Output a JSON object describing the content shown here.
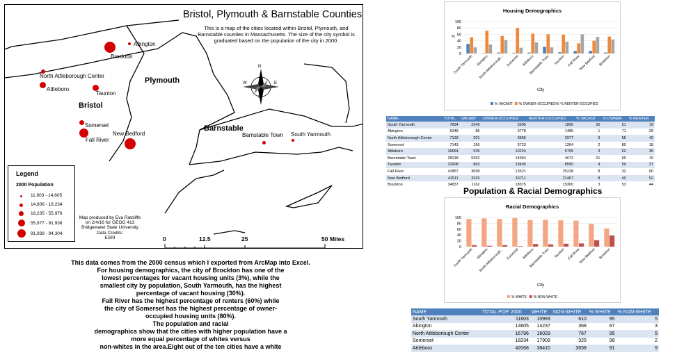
{
  "map": {
    "title": "Bristol, Plymouth & Barnstable Counties",
    "description": "This is a map of the cities located within Bristol, Plymouth, and Barnstable counties in Massachusetts. The size of the city symbol is graduated based on the population of the city in 2000.",
    "counties": [
      "Plymouth",
      "Bristol",
      "Barnstable"
    ],
    "cities": [
      "Abington",
      "Brockton",
      "North Attleborough Center",
      "Attleboro",
      "Taunton",
      "Somerset",
      "New Bedford",
      "Fall River",
      "Barnstable Town",
      "South Yarmouth"
    ],
    "compass": {
      "n": "N",
      "s": "S",
      "e": "E",
      "w": "W"
    },
    "legend": {
      "title": "Legend",
      "subtitle": "2000 Population",
      "items": [
        "11,603 - 14,605",
        "14,606 - 18,234",
        "18,235 - 55,976",
        "55,977 - 91,938",
        "91,939 - 94,304"
      ],
      "symbol_color": "#d40000"
    },
    "credit": [
      "Map produced by Eva Ratcliffe",
      "on 2/4/16 for GEOG 413",
      "Bridgewater State University",
      "Data Credits:",
      "ESRI"
    ],
    "scale": [
      "0",
      "12.5",
      "25",
      "50 Miles"
    ]
  },
  "body_text": [
    "This data comes from the 2000 census which I exported from ArcMap into Excel.",
    "For housing demographics, the city of Brockton has one of the",
    "lowest percentages for vacant housing units (3%), while the",
    "smallest city by population, South Yarmouth, has the highest",
    "percentage of vacant housing (30%).",
    "Fall River has the highest percentage of renters (60%) while",
    "the city of Somerset has the highest percentage of owner-",
    "occupied housing units (80%).",
    "The population and racial",
    "demographics show that the cities with higher population have a",
    "more equal percentage of whites versus",
    "non-whites in the area.Eight out of the ten cities have a white"
  ],
  "housing": {
    "section_title": "Population & Racial Demographics",
    "table_headers": [
      "NAME",
      "TOTAL",
      "VACANT",
      "OWNER-OCCUPIED",
      "RENTER-OCCUPIED",
      "% VACANT",
      "% OWNER",
      "% RENTER"
    ],
    "rows": [
      [
        "South Yarmouth",
        "7834",
        "2349",
        "3995",
        "1890",
        "30",
        "51",
        "19"
      ],
      [
        "Abington",
        "5348",
        "85",
        "3778",
        "1485",
        "1",
        "71",
        "28"
      ],
      [
        "North Attleborough Center",
        "7133",
        "201",
        "3955",
        "2977",
        "3",
        "55",
        "42"
      ],
      [
        "Somerset",
        "7143",
        "156",
        "5723",
        "1264",
        "2",
        "80",
        "18"
      ],
      [
        "Attleboro",
        "16654",
        "535",
        "10224",
        "5795",
        "3",
        "62",
        "35"
      ],
      [
        "Barnstable Town",
        "25018",
        "5392",
        "14954",
        "4672",
        "21",
        "60",
        "19"
      ],
      [
        "Taunton",
        "22908",
        "863",
        "13495",
        "8550",
        "4",
        "59",
        "37"
      ],
      [
        "Fall River",
        "41857",
        "3098",
        "13521",
        "25238",
        "8",
        "32",
        "60"
      ],
      [
        "New Bedford",
        "41511",
        "3333",
        "16711",
        "21467",
        "8",
        "40",
        "52"
      ],
      [
        "Brockton",
        "34837",
        "1162",
        "18375",
        "15300",
        "3",
        "53",
        "44"
      ]
    ]
  },
  "race": {
    "table_headers": [
      "NAME",
      "TOTAL POP. 2000",
      "WHITE",
      "NON-WHITE",
      "% WHITE",
      "% NON-WHITE"
    ],
    "rows": [
      [
        "South Yarmouth",
        "11603",
        "10993",
        "610",
        "95",
        "5"
      ],
      [
        "Abington",
        "14605",
        "14237",
        "368",
        "97",
        "3"
      ],
      [
        "North Attleborough Center",
        "16796",
        "16029",
        "767",
        "95",
        "5"
      ],
      [
        "Somerset",
        "18234",
        "17909",
        "325",
        "98",
        "2"
      ],
      [
        "Attleboro",
        "42068",
        "38410",
        "3658",
        "91",
        "9"
      ]
    ]
  },
  "chart_data": [
    {
      "type": "bar",
      "title": "Housing Demographics",
      "xlabel": "City",
      "ylabel": "%",
      "ylim": [
        0,
        100
      ],
      "yticks": [
        "100",
        "80",
        "60",
        "40",
        "20",
        "0"
      ],
      "categories": [
        "South Yarmouth",
        "Abington",
        "North Attleborough...",
        "Somerset",
        "Attleboro",
        "Barnstable Town",
        "Taunton",
        "Fall River",
        "New Bedford",
        "Brockton"
      ],
      "series": [
        {
          "name": "% VACANT",
          "color": "#4f81bd",
          "values": [
            30,
            1,
            3,
            2,
            3,
            21,
            4,
            8,
            8,
            3
          ]
        },
        {
          "name": "% OWNER-OCCUPIED",
          "color": "#f0883a",
          "values": [
            51,
            71,
            55,
            80,
            62,
            60,
            59,
            32,
            40,
            53
          ]
        },
        {
          "name": "% RENTER-OCCUPIED",
          "color": "#a5a5a5",
          "values": [
            19,
            28,
            42,
            18,
            35,
            19,
            37,
            60,
            52,
            44
          ]
        }
      ]
    },
    {
      "type": "bar",
      "title": "Racial Demographics",
      "xlabel": "City",
      "ylim": [
        0,
        100
      ],
      "yticks": [
        "100",
        "80",
        "60",
        "40",
        "20",
        "0"
      ],
      "categories": [
        "South Yarmouth",
        "Abington",
        "North Attleborough...",
        "Somerset",
        "Attleboro",
        "Barnstable Town",
        "Taunton",
        "Fall River",
        "New Bedford",
        "Brockton"
      ],
      "series": [
        {
          "name": "% WHITE",
          "color": "#f4a582",
          "values": [
            95,
            97,
            95,
            98,
            91,
            92,
            90,
            89,
            78,
            62
          ]
        },
        {
          "name": "% NON-WHITE",
          "color": "#c0504d",
          "values": [
            5,
            3,
            5,
            2,
            9,
            8,
            10,
            11,
            22,
            38
          ]
        }
      ]
    }
  ]
}
